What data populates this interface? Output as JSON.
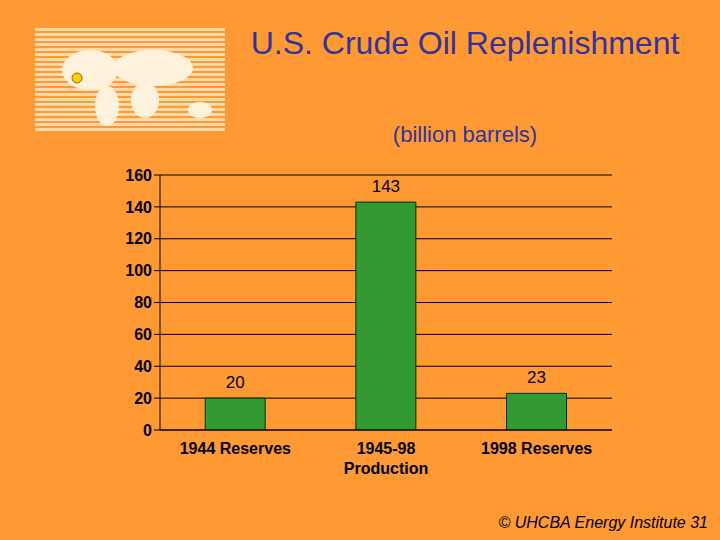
{
  "chart_data": {
    "type": "bar",
    "title": "U.S. Crude Oil Replenishment",
    "subtitle": "(billion barrels)",
    "categories": [
      "1944 Reserves",
      "1945-98 Production",
      "1998 Reserves"
    ],
    "values": [
      20,
      143,
      23
    ],
    "color": "#339933",
    "ylim": [
      0,
      160
    ],
    "yticks": [
      0,
      20,
      40,
      60,
      80,
      100,
      120,
      140,
      160
    ],
    "grid": true,
    "data_labels": true,
    "annotations": [
      "© UHCBA Energy Institute 31"
    ]
  }
}
